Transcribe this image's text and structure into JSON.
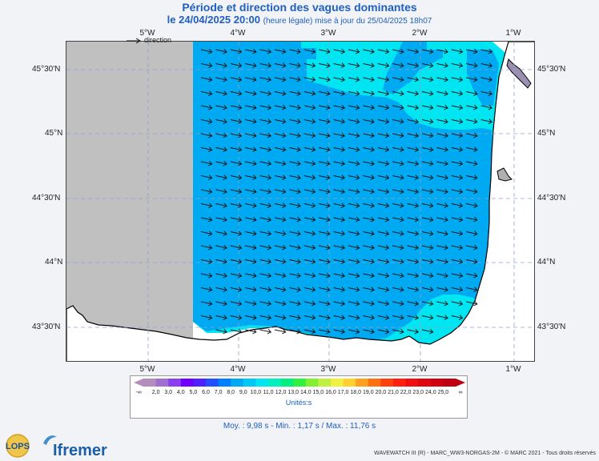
{
  "header": {
    "title": "Période et direction des vagues dominantes",
    "date": "le 24/04/2025 20:00",
    "date_note": "(heure légale) mise à jour du 25/04/2025 18h07"
  },
  "map": {
    "top_lon_labels": [
      "5°W",
      "4°W",
      "3°W",
      "2°W",
      "1°W"
    ],
    "bottom_lon_labels": [
      "5°W",
      "4°W",
      "3°W",
      "2°W",
      "1°W"
    ],
    "lat_labels": [
      "45°30'N",
      "45°N",
      "44°30'N",
      "44°N",
      "43°30'N"
    ],
    "sea_colors": {
      "cyan": "#00e5f2",
      "blue": "#00aaf2",
      "land": "#c0c0c0"
    }
  },
  "legend": {
    "ticks": [
      "-∞",
      "2,0",
      "3,0",
      "4,0",
      "5,0",
      "6,0",
      "7,0",
      "8,0",
      "9,0",
      "10,0",
      "11,0",
      "12,0",
      "13,0",
      "14,0",
      "15,0",
      "16,0",
      "17,0",
      "18,0",
      "19,0",
      "20,0",
      "21,0",
      "22,0",
      "23,0",
      "24,0",
      "25,0",
      "∞"
    ],
    "colors": [
      "#b58ebd",
      "#a070d0",
      "#8c3ff0",
      "#7000ff",
      "#5020ff",
      "#2050ff",
      "#0080ff",
      "#00aaf2",
      "#00c8f5",
      "#00e5f2",
      "#00f0c0",
      "#00f080",
      "#30f040",
      "#80f030",
      "#c0f040",
      "#f0f040",
      "#ffd030",
      "#ffa020",
      "#ff7010",
      "#ff4010",
      "#ff2010",
      "#f01010",
      "#e00810",
      "#d00010",
      "#c00010"
    ],
    "unit": "Unités:s",
    "direction_label": "direction"
  },
  "stats": "Moy. : 9,98 s  -  Min. : 1,17 s / Max. : 11,76 s",
  "credit": "WAVEWATCH III (R) - MARC_WW3-NORGAS-2M - © MARC 2021 - Tous droits réservés",
  "logos": {
    "lops": "LOPS",
    "ifremer": "Ifremer"
  }
}
